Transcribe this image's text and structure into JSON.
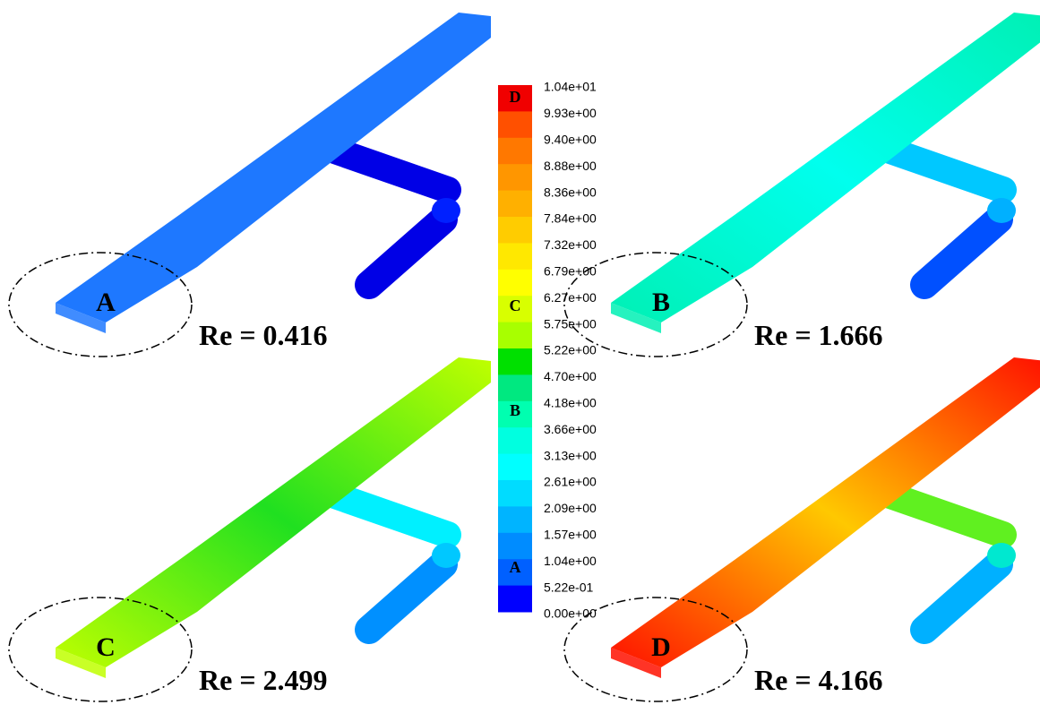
{
  "colorbar": {
    "labels": [
      "1.04e+01",
      "9.93e+00",
      "9.40e+00",
      "8.88e+00",
      "8.36e+00",
      "7.84e+00",
      "7.32e+00",
      "6.79e+00",
      "6.27e+00",
      "5.75e+00",
      "5.22e+00",
      "4.70e+00",
      "4.18e+00",
      "3.66e+00",
      "3.13e+00",
      "2.61e+00",
      "2.09e+00",
      "1.57e+00",
      "1.04e+00",
      "5.22e-01",
      "0.00e+00"
    ],
    "markers": [
      "D",
      "C",
      "B",
      "A"
    ]
  },
  "panels": [
    {
      "marker": "A",
      "caption": "Re = 0.416"
    },
    {
      "marker": "B",
      "caption": "Re = 1.666"
    },
    {
      "marker": "C",
      "caption": "Re = 2.499"
    },
    {
      "marker": "D",
      "caption": "Re = 4.166"
    }
  ]
}
